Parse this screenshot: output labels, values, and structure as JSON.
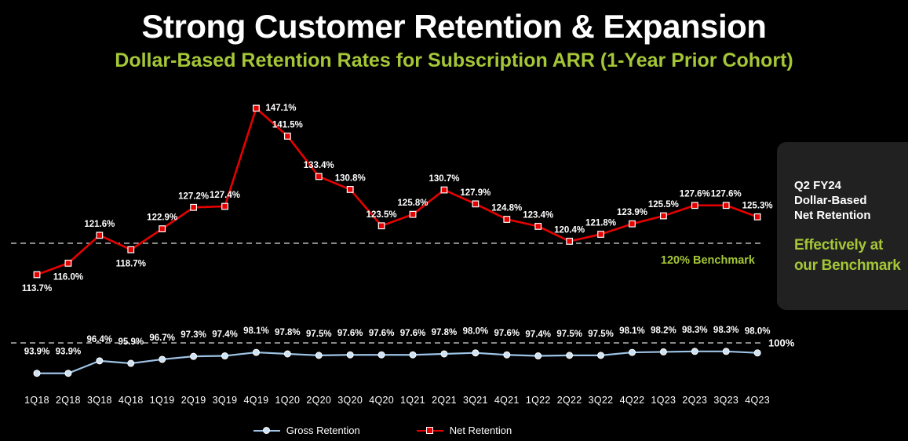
{
  "title": "Strong Customer Retention & Expansion",
  "subtitle": "Dollar-Based Retention Rates for Subscription ARR (1-Year Prior Cohort)",
  "colors": {
    "background": "#000000",
    "accent_green": "#a4c637",
    "net_red": "#e60000",
    "gross_blue": "#9dc3e6",
    "panel_bg": "#212121",
    "dashed_line": "#d9d9d9",
    "text": "#ffffff"
  },
  "side_panel": {
    "heading_lines": [
      "Q2 FY24",
      "Dollar-Based",
      "Net Retention"
    ],
    "highlight_lines": [
      "Effectively at",
      "our Benchmark"
    ]
  },
  "chart_data": {
    "type": "line",
    "title": "Strong Customer Retention & Expansion",
    "subtitle": "Dollar-Based Retention Rates for Subscription ARR (1-Year Prior Cohort)",
    "categories": [
      "1Q18",
      "2Q18",
      "3Q18",
      "4Q18",
      "1Q19",
      "2Q19",
      "3Q19",
      "4Q19",
      "1Q20",
      "2Q20",
      "3Q20",
      "4Q20",
      "1Q21",
      "2Q21",
      "3Q21",
      "4Q21",
      "1Q22",
      "2Q22",
      "3Q22",
      "4Q22",
      "1Q23",
      "2Q23",
      "3Q23",
      "4Q23"
    ],
    "series": [
      {
        "name": "Gross Retention",
        "color": "#9dc3e6",
        "marker": "circle",
        "marker_fill": "#cfe2f3",
        "values": [
          93.9,
          93.9,
          96.4,
          95.9,
          96.7,
          97.3,
          97.4,
          98.1,
          97.8,
          97.5,
          97.6,
          97.6,
          97.6,
          97.8,
          98.0,
          97.6,
          97.4,
          97.5,
          97.5,
          98.1,
          98.2,
          98.3,
          98.3,
          98.0
        ]
      },
      {
        "name": "Net Retention",
        "color": "#e60000",
        "marker": "square",
        "marker_fill": "#e60000",
        "values": [
          113.7,
          116.0,
          121.6,
          118.7,
          122.9,
          127.2,
          127.4,
          147.1,
          141.5,
          133.4,
          130.8,
          123.5,
          125.8,
          130.7,
          127.9,
          124.8,
          123.4,
          120.4,
          121.8,
          123.9,
          125.5,
          127.6,
          127.6,
          125.3
        ]
      }
    ],
    "ylim": [
      90,
      150
    ],
    "xlabel": "",
    "ylabel": "",
    "grid": false,
    "legend_position": "bottom",
    "reference_lines": [
      {
        "value": 120,
        "label": "120% Benchmark",
        "style": "dashed"
      },
      {
        "value": 100,
        "label": "100%",
        "style": "dashed"
      }
    ]
  }
}
